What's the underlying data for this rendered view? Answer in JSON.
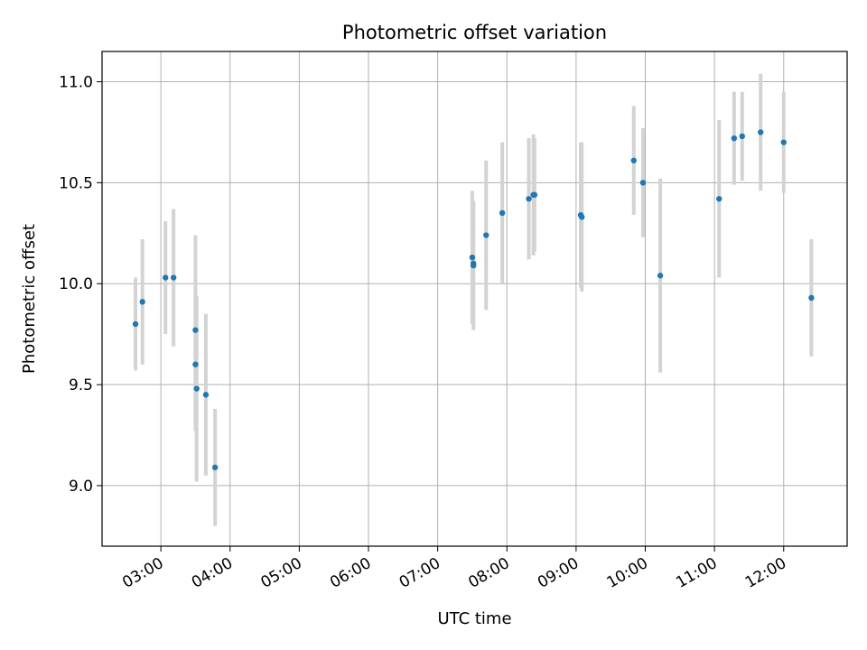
{
  "colors": {
    "point": "#1f77b4",
    "errorbar": "#d3d3d3",
    "grid": "#b0b0b0",
    "axes": "#000000"
  },
  "chart_data": {
    "type": "scatter",
    "title": "Photometric offset variation",
    "xlabel": "UTC time",
    "ylabel": "Photometric offset",
    "x_ticks": [
      "03:00",
      "04:00",
      "05:00",
      "06:00",
      "07:00",
      "08:00",
      "09:00",
      "10:00",
      "11:00",
      "12:00"
    ],
    "y_ticks": [
      "9.0",
      "9.5",
      "10.0",
      "10.5",
      "11.0"
    ],
    "xlim": [
      "02:09",
      "12:55"
    ],
    "ylim": [
      8.7,
      11.15
    ],
    "grid": true,
    "series": [
      {
        "points": [
          {
            "x": "02:38",
            "y": 9.8,
            "yerr": 0.23
          },
          {
            "x": "02:44",
            "y": 9.91,
            "yerr": 0.31
          },
          {
            "x": "03:04",
            "y": 10.03,
            "yerr": 0.28
          },
          {
            "x": "03:11",
            "y": 10.03,
            "yerr": 0.34
          },
          {
            "x": "03:30",
            "y": 9.77,
            "yerr": 0.47
          },
          {
            "x": "03:30",
            "y": 9.6,
            "yerr": 0.33
          },
          {
            "x": "03:31",
            "y": 9.48,
            "yerr": 0.46
          },
          {
            "x": "03:39",
            "y": 9.45,
            "yerr": 0.4
          },
          {
            "x": "03:47",
            "y": 9.09,
            "yerr": 0.29
          },
          {
            "x": "07:30",
            "y": 10.13,
            "yerr": 0.33
          },
          {
            "x": "07:31",
            "y": 10.1,
            "yerr": 0.31
          },
          {
            "x": "07:31",
            "y": 10.09,
            "yerr": 0.32
          },
          {
            "x": "07:42",
            "y": 10.24,
            "yerr": 0.37
          },
          {
            "x": "07:56",
            "y": 10.35,
            "yerr": 0.35
          },
          {
            "x": "08:19",
            "y": 10.42,
            "yerr": 0.3
          },
          {
            "x": "08:23",
            "y": 10.44,
            "yerr": 0.3
          },
          {
            "x": "08:24",
            "y": 10.44,
            "yerr": 0.28
          },
          {
            "x": "09:04",
            "y": 10.34,
            "yerr": 0.36
          },
          {
            "x": "09:05",
            "y": 10.33,
            "yerr": 0.37
          },
          {
            "x": "09:50",
            "y": 10.61,
            "yerr": 0.27
          },
          {
            "x": "09:58",
            "y": 10.5,
            "yerr": 0.27
          },
          {
            "x": "10:13",
            "y": 10.04,
            "yerr": 0.48
          },
          {
            "x": "11:04",
            "y": 10.42,
            "yerr": 0.39
          },
          {
            "x": "11:17",
            "y": 10.72,
            "yerr": 0.23
          },
          {
            "x": "11:24",
            "y": 10.73,
            "yerr": 0.22
          },
          {
            "x": "11:40",
            "y": 10.75,
            "yerr": 0.29
          },
          {
            "x": "12:00",
            "y": 10.7,
            "yerr": 0.25
          },
          {
            "x": "12:24",
            "y": 9.93,
            "yerr": 0.29
          }
        ]
      }
    ]
  }
}
